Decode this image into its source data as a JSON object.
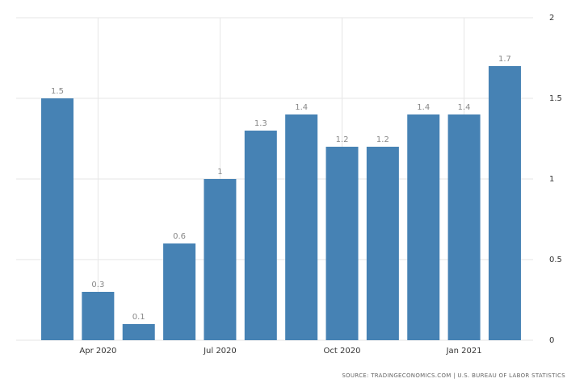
{
  "chart_data": {
    "type": "bar",
    "categories": [
      null,
      "Apr 2020",
      null,
      null,
      "Jul 2020",
      null,
      null,
      "Oct 2020",
      null,
      null,
      "Jan 2021",
      null
    ],
    "values": [
      1.5,
      0.3,
      0.1,
      0.6,
      1,
      1.3,
      1.4,
      1.2,
      1.2,
      1.4,
      1.4,
      1.7
    ],
    "color": "#4682b4",
    "ylim": [
      0,
      2
    ],
    "yticks": [
      0,
      0.5,
      1,
      1.5,
      2
    ],
    "grid": true,
    "source": "SOURCE: TRADINGECONOMICS.COM | U.S. BUREAU OF LABOR STATISTICS"
  }
}
